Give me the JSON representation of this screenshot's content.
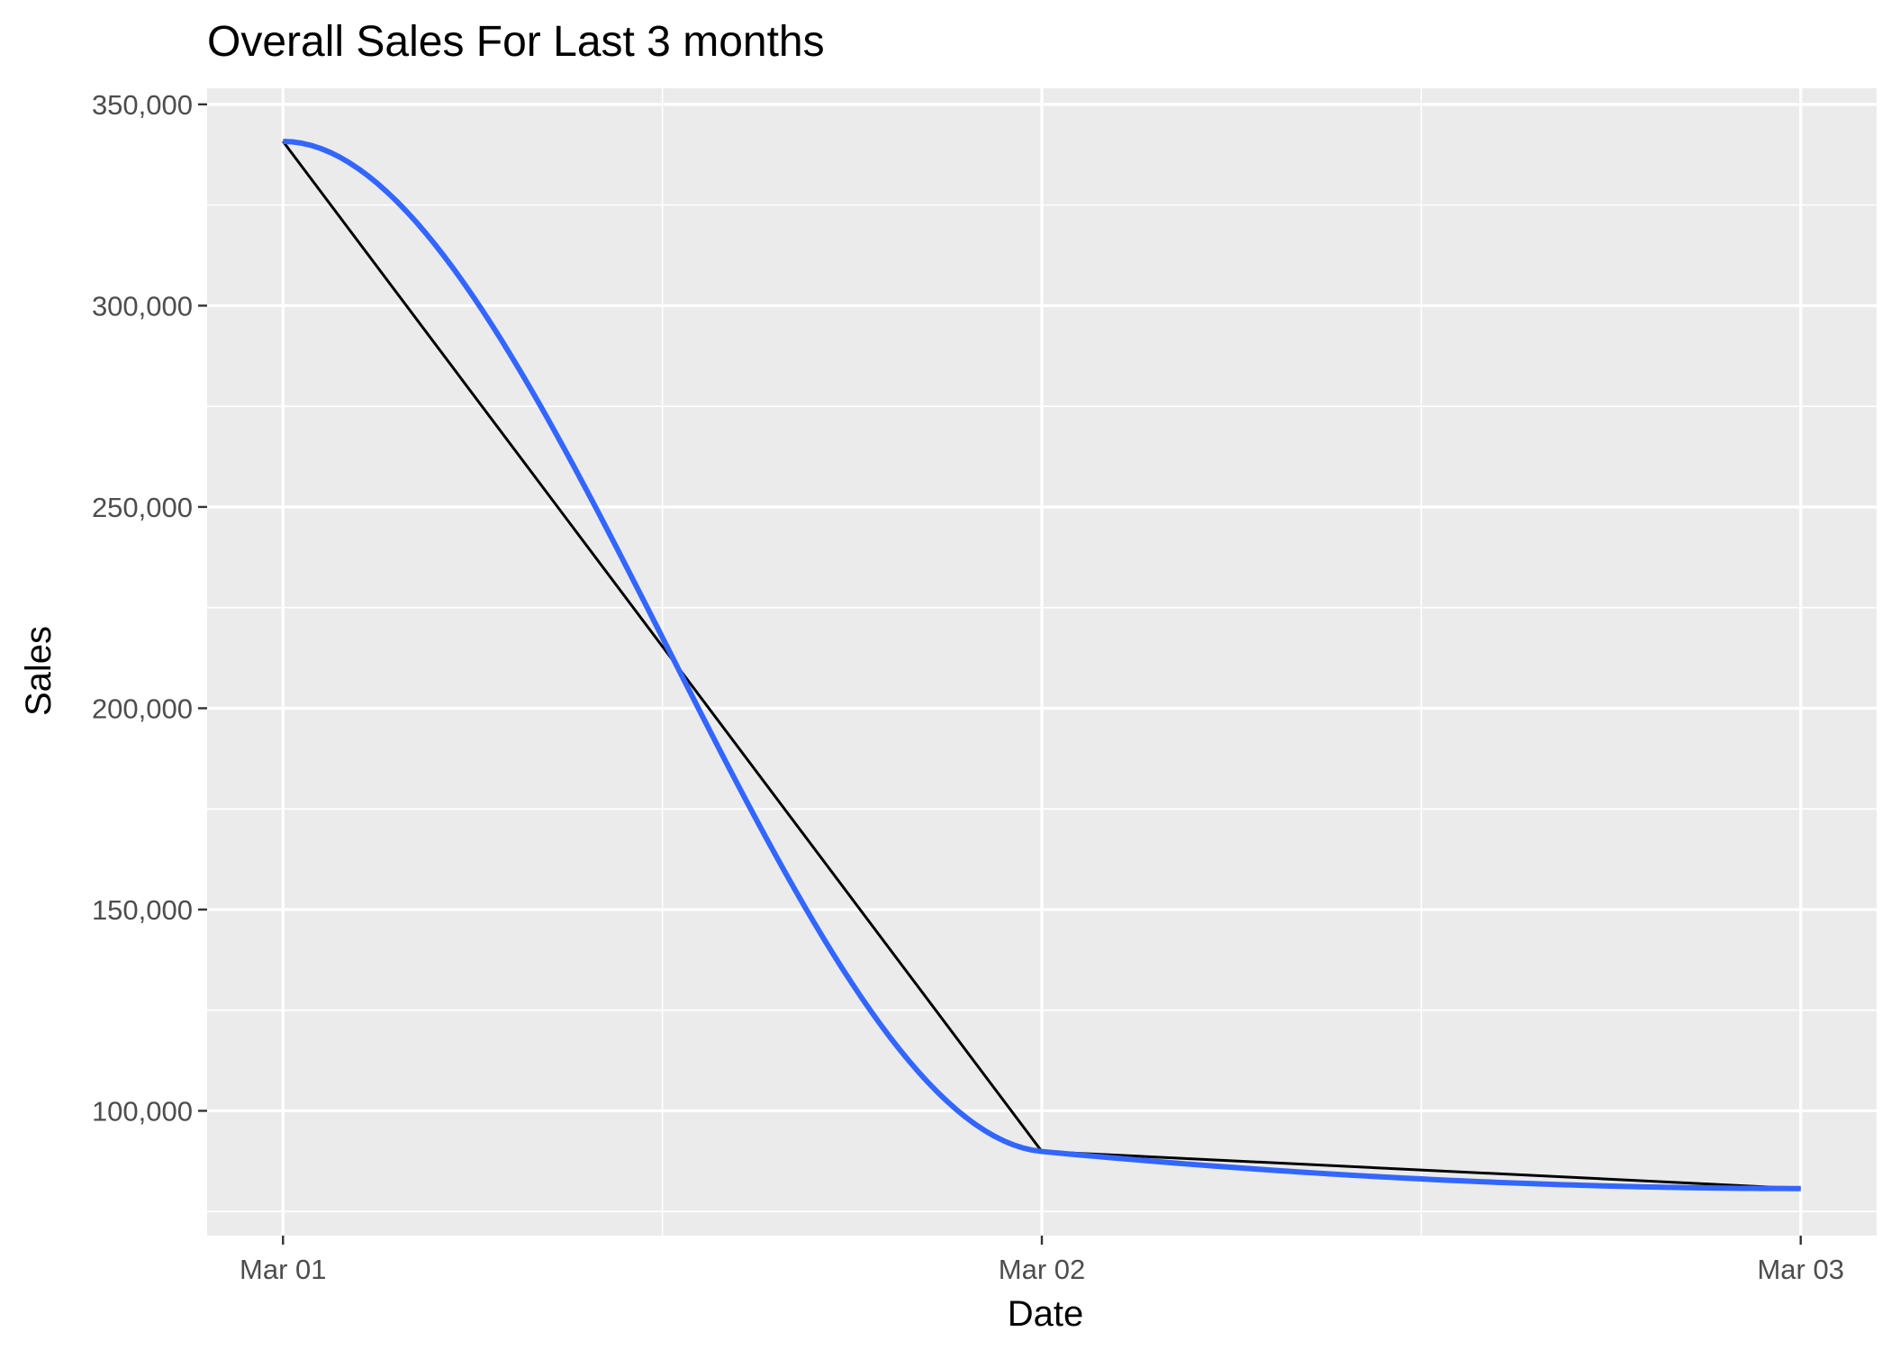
{
  "chart_data": {
    "type": "line",
    "title": "Overall Sales For Last 3 months",
    "xlabel": "Date",
    "ylabel": "Sales",
    "x": [
      "Mar 01",
      "Mar 02",
      "Mar 03"
    ],
    "x_tick_labels": [
      "Mar 01",
      "Mar 02",
      "Mar 03"
    ],
    "y_tick_labels": [
      "100,000",
      "150,000",
      "200,000",
      "250,000",
      "300,000",
      "350,000"
    ],
    "y_ticks": [
      100000,
      150000,
      200000,
      250000,
      300000,
      350000
    ],
    "ylim": [
      69000,
      354000
    ],
    "xlim": [
      -0.1,
      2.1
    ],
    "grid": true,
    "legend": "none",
    "colors": {
      "panel": "#ebebeb",
      "grid": "#ffffff",
      "line": "#000000",
      "smooth": "#3366ff",
      "tick": "#333333"
    },
    "series": [
      {
        "type": "line",
        "values": [
          340800,
          89900,
          80700
        ]
      },
      {
        "type": "smooth",
        "values": [
          340800,
          89900,
          80700
        ]
      }
    ]
  }
}
